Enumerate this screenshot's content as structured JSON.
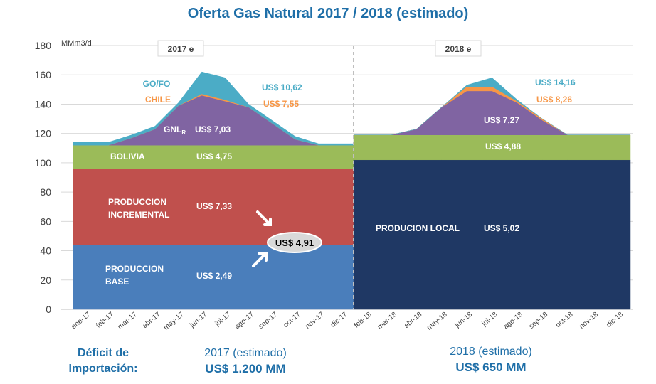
{
  "title": "Oferta Gas Natural 2017 / 2018 (estimado)",
  "chart_data": {
    "type": "area",
    "ylabel": "MMm3/d",
    "ylim": [
      0,
      180
    ],
    "yticks": [
      0,
      20,
      40,
      60,
      80,
      100,
      120,
      140,
      160,
      180
    ],
    "grid": true,
    "panels": [
      {
        "header": "2017 e",
        "categories": [
          "ene-17",
          "feb-17",
          "mar-17",
          "abr-17",
          "may-17",
          "jun-17",
          "jul-17",
          "ago-17",
          "sep-17",
          "oct-17",
          "nov-17",
          "dic-17"
        ],
        "series": [
          {
            "name": "PRODUCCION BASE",
            "color": "#4a7ebb",
            "values": [
              44,
              44,
              44,
              44,
              44,
              44,
              44,
              44,
              44,
              44,
              44,
              44
            ]
          },
          {
            "name": "PRODUCCION INCREMENTAL",
            "color": "#c0504d",
            "values": [
              52,
              52,
              52,
              52,
              52,
              52,
              52,
              52,
              52,
              52,
              52,
              52
            ]
          },
          {
            "name": "BOLIVIA",
            "color": "#9bbb59",
            "values": [
              16,
              16,
              16,
              16,
              16,
              16,
              16,
              16,
              16,
              16,
              16,
              16
            ]
          },
          {
            "name": "GNL",
            "color": "#8064a2",
            "values": [
              0,
              0,
              5,
              11,
              27,
              34,
              30,
              26,
              15,
              4,
              0,
              0
            ]
          },
          {
            "name": "CHILE",
            "color": "#f79646",
            "values": [
              0,
              0,
              0,
              0,
              0,
              1,
              1,
              0,
              0,
              0,
              0,
              0
            ]
          },
          {
            "name": "GO/FO",
            "color": "#4bacc6",
            "values": [
              2,
              2,
              2,
              2,
              2,
              15,
              15,
              2,
              2,
              2,
              1,
              1
            ]
          }
        ]
      },
      {
        "header": "2018 e",
        "categories": [
          "feb-18",
          "mar-18",
          "abr-18",
          "may-18",
          "jun-18",
          "jul-18",
          "ago-18",
          "sep-18",
          "oct-18",
          "nov-18",
          "dic-18"
        ],
        "series": [
          {
            "name": "PRODUCION LOCAL",
            "color": "#1f3864",
            "values": [
              102,
              102,
              102,
              102,
              102,
              102,
              102,
              102,
              102,
              102,
              102
            ]
          },
          {
            "name": "BOLIVIA",
            "color": "#9bbb59",
            "values": [
              17,
              17,
              17,
              17,
              17,
              17,
              17,
              17,
              17,
              17,
              17
            ]
          },
          {
            "name": "GNL",
            "color": "#8064a2",
            "values": [
              0,
              0,
              4,
              19,
              30,
              30,
              22,
              10,
              0,
              0,
              0
            ]
          },
          {
            "name": "CHILE",
            "color": "#f79646",
            "values": [
              0,
              0,
              0,
              0,
              3,
              3,
              1,
              1,
              0,
              0,
              0
            ]
          },
          {
            "name": "GO/FO",
            "color": "#4bacc6",
            "values": [
              0,
              0,
              0,
              0,
              1,
              6,
              1,
              0,
              0,
              0,
              0
            ]
          }
        ]
      }
    ],
    "annotations": [
      {
        "panel": 0,
        "text": "GO/FO",
        "color": "#4bacc6"
      },
      {
        "panel": 0,
        "text": "CHILE",
        "color": "#f79646"
      },
      {
        "panel": 0,
        "text": "GNL",
        "sub": "R",
        "color": "#ffffff"
      },
      {
        "panel": 0,
        "text": "BOLIVIA",
        "color": "#ffffff"
      },
      {
        "panel": 0,
        "text": "PRODUCCION",
        "color": "#ffffff"
      },
      {
        "panel": 0,
        "text": "INCREMENTAL",
        "color": "#ffffff"
      },
      {
        "panel": 0,
        "text": "PRODUCCION",
        "color": "#ffffff"
      },
      {
        "panel": 0,
        "text": "BASE",
        "color": "#ffffff"
      },
      {
        "panel": 0,
        "text": "US$ 10,62",
        "color": "#4bacc6"
      },
      {
        "panel": 0,
        "text": "US$ 7,55",
        "color": "#f79646"
      },
      {
        "panel": 0,
        "text": "US$ 7,03",
        "color": "#ffffff"
      },
      {
        "panel": 0,
        "text": "US$ 4,75",
        "color": "#ffffff"
      },
      {
        "panel": 0,
        "text": "US$ 7,33",
        "color": "#ffffff"
      },
      {
        "panel": 0,
        "text": "US$ 2,49",
        "color": "#ffffff"
      },
      {
        "panel": 1,
        "text": "US$ 14,16",
        "color": "#4bacc6"
      },
      {
        "panel": 1,
        "text": "US$ 8,26",
        "color": "#f79646"
      },
      {
        "panel": 1,
        "text": "US$ 7,27",
        "color": "#ffffff"
      },
      {
        "panel": 1,
        "text": "US$ 4,88",
        "color": "#ffffff"
      },
      {
        "panel": 1,
        "text": "US$ 5,02",
        "color": "#ffffff"
      },
      {
        "panel": 1,
        "text": "PRODUCION LOCAL",
        "color": "#ffffff"
      }
    ],
    "callout": "US$ 4,91"
  },
  "footer": {
    "deficit_label_line1": "Déficit de",
    "deficit_label_line2": "Importación:",
    "y2017_label": "2017 (estimado)",
    "y2017_value": "US$ 1.200 MM",
    "y2018_label": "2018 (estimado)",
    "y2018_value": "US$ 650 MM"
  }
}
